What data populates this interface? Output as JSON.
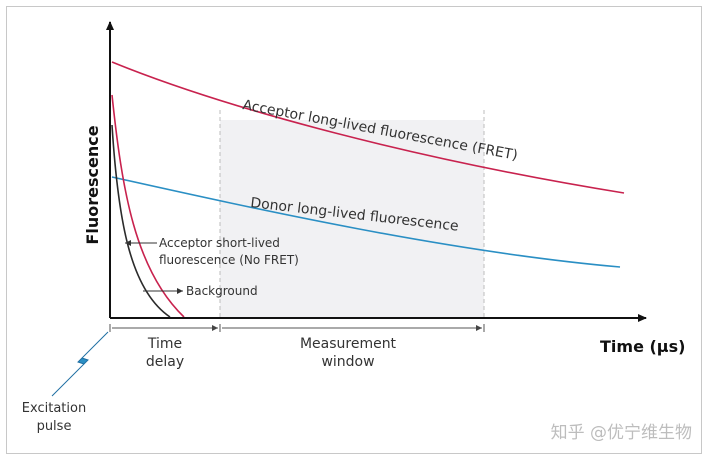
{
  "diagram": {
    "y_axis_label": "Fluorescence",
    "x_axis_label": "Time (µs)",
    "acceptor_long_label": "Acceptor long-lived fluorescence (FRET)",
    "donor_long_label": "Donor long-lived fluorescence",
    "acceptor_short_label_line1": "Acceptor short-lived",
    "acceptor_short_label_line2": "fluorescence (No FRET)",
    "background_label": "Background",
    "time_delay_line1": "Time",
    "time_delay_line2": "delay",
    "measurement_line1": "Measurement",
    "measurement_line2": "window",
    "excitation_line1": "Excitation",
    "excitation_line2": "pulse",
    "watermark": "知乎 @优宁维生物",
    "colors": {
      "acceptor": "#c8224e",
      "donor": "#2a8fc4",
      "background": "#2b2b2b",
      "excitation": "#1f6fa3",
      "window_fill": "#f1f1f3",
      "axis": "#111111"
    }
  }
}
